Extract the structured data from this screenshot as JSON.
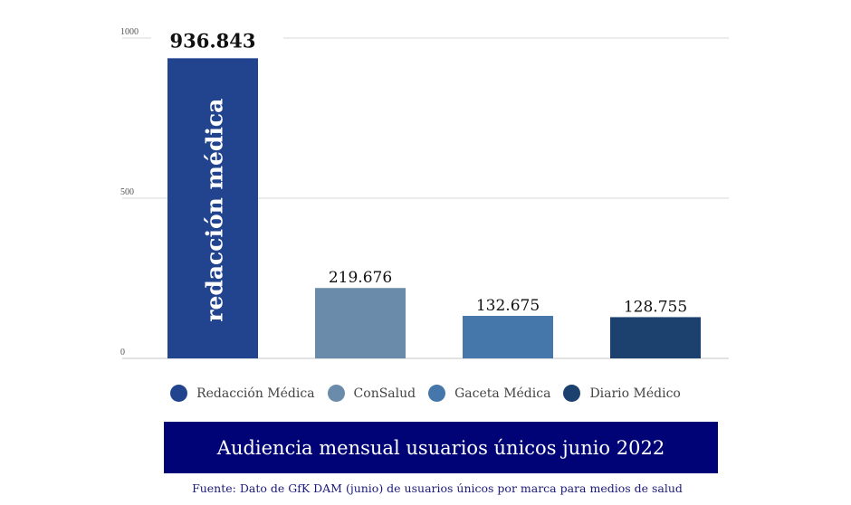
{
  "chart_data": {
    "type": "bar",
    "title": "Audiencia mensual usuarios únicos junio 2022",
    "source": "Fuente: Dato de GfK DAM (junio) de usuarios únicos por marca para medios de salud",
    "xlabel": "",
    "ylabel": "",
    "ylim": [
      0,
      1000
    ],
    "yticks": [
      0,
      500,
      1000
    ],
    "ytick_labels": [
      "0",
      "500",
      "1000"
    ],
    "grid": true,
    "legend_position": "bottom",
    "categories": [
      "Redacción Médica",
      "ConSalud",
      "Gaceta Médica",
      "Diario Médico"
    ],
    "values": [
      936.843,
      219.676,
      132.675,
      128.755
    ],
    "value_labels": [
      "936.843",
      "219.676",
      "132.675",
      "128.755"
    ],
    "colors": [
      "#22448e",
      "#6a8caa",
      "#4577aa",
      "#1c416f"
    ],
    "bar_inner_label": "redacción médica"
  },
  "legend": [
    {
      "label": "Redacción Médica",
      "color": "#22448e"
    },
    {
      "label": "ConSalud",
      "color": "#6a8caa"
    },
    {
      "label": "Gaceta Médica",
      "color": "#4577aa"
    },
    {
      "label": "Diario Médico",
      "color": "#1c416f"
    }
  ],
  "title": "Audiencia mensual usuarios únicos junio 2022",
  "source": "Fuente: Dato de GfK DAM (junio) de usuarios únicos por marca para medios de salud",
  "title_bg": "#000375"
}
